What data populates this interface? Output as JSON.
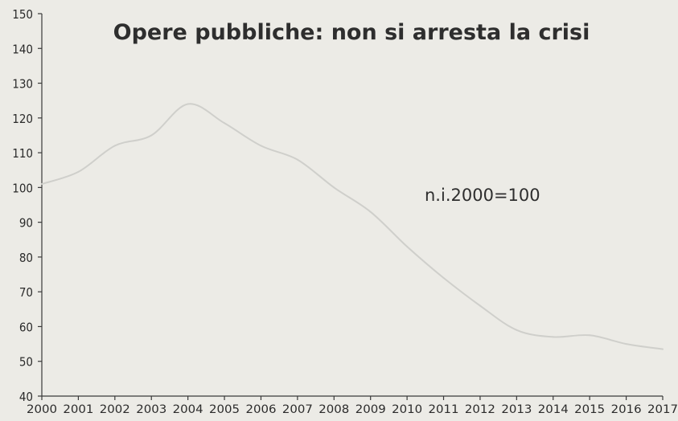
{
  "chart_data": {
    "type": "line",
    "title": "Opere pubbliche: non si arresta la crisi",
    "annotation": "n.i.2000=100",
    "xlabel": "",
    "ylabel": "",
    "ylim": [
      40,
      150
    ],
    "yticks": [
      40,
      50,
      60,
      70,
      80,
      90,
      100,
      110,
      120,
      130,
      140,
      150
    ],
    "xticks": [
      "2000",
      "2001",
      "2002",
      "2003",
      "2004",
      "2005",
      "2006",
      "2007",
      "2008",
      "2009",
      "2010",
      "2011",
      "2012",
      "2013",
      "2014",
      "2015",
      "2016",
      "2017"
    ],
    "grid": false,
    "series": [
      {
        "x": [
          2000,
          2001,
          2002,
          2003,
          2004,
          2005,
          2006,
          2007,
          2008,
          2009,
          2010,
          2011,
          2012,
          2013,
          2014,
          2015,
          2016,
          2017
        ],
        "values": [
          101,
          104.5,
          112,
          115,
          124,
          118.5,
          112,
          108,
          100,
          93,
          83,
          74,
          66,
          59,
          57,
          57.5,
          55,
          53.5
        ]
      }
    ],
    "colors": {
      "line": "#cfcfcb",
      "axis": "#3a3a3a",
      "background": "#ecebe6"
    }
  }
}
